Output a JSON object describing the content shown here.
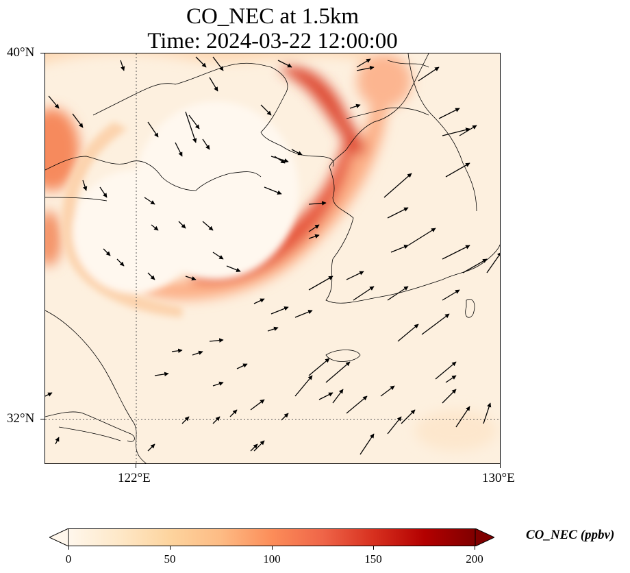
{
  "title": {
    "line1": "CO_NEC at 1.5km",
    "line2": "Time: 2024-03-22 12:00:00"
  },
  "axes": {
    "y_ticks": [
      "40°N",
      "32°N"
    ],
    "x_ticks": [
      "122°E",
      "130°E"
    ]
  },
  "extent": {
    "lon_min": 120,
    "lon_max": 130,
    "lat_min": 31,
    "lat_max": 40
  },
  "colorbar": {
    "label": "CO_NEC (ppbv)",
    "ticks": [
      "0",
      "50",
      "100",
      "150",
      "200"
    ],
    "vmin": 0,
    "vmax": 200,
    "colormap": "OrRd",
    "colors": [
      "#fff7ec",
      "#fee8c8",
      "#fdd49e",
      "#fdbb84",
      "#fc8d59",
      "#ef6548",
      "#d7301f",
      "#b30000",
      "#7f0000"
    ],
    "extend": "both"
  },
  "gridlines": {
    "style": "dotted",
    "lon": [
      122
    ],
    "lat": [
      32
    ]
  },
  "wind_vectors": "wind arrows at 1.5km"
}
